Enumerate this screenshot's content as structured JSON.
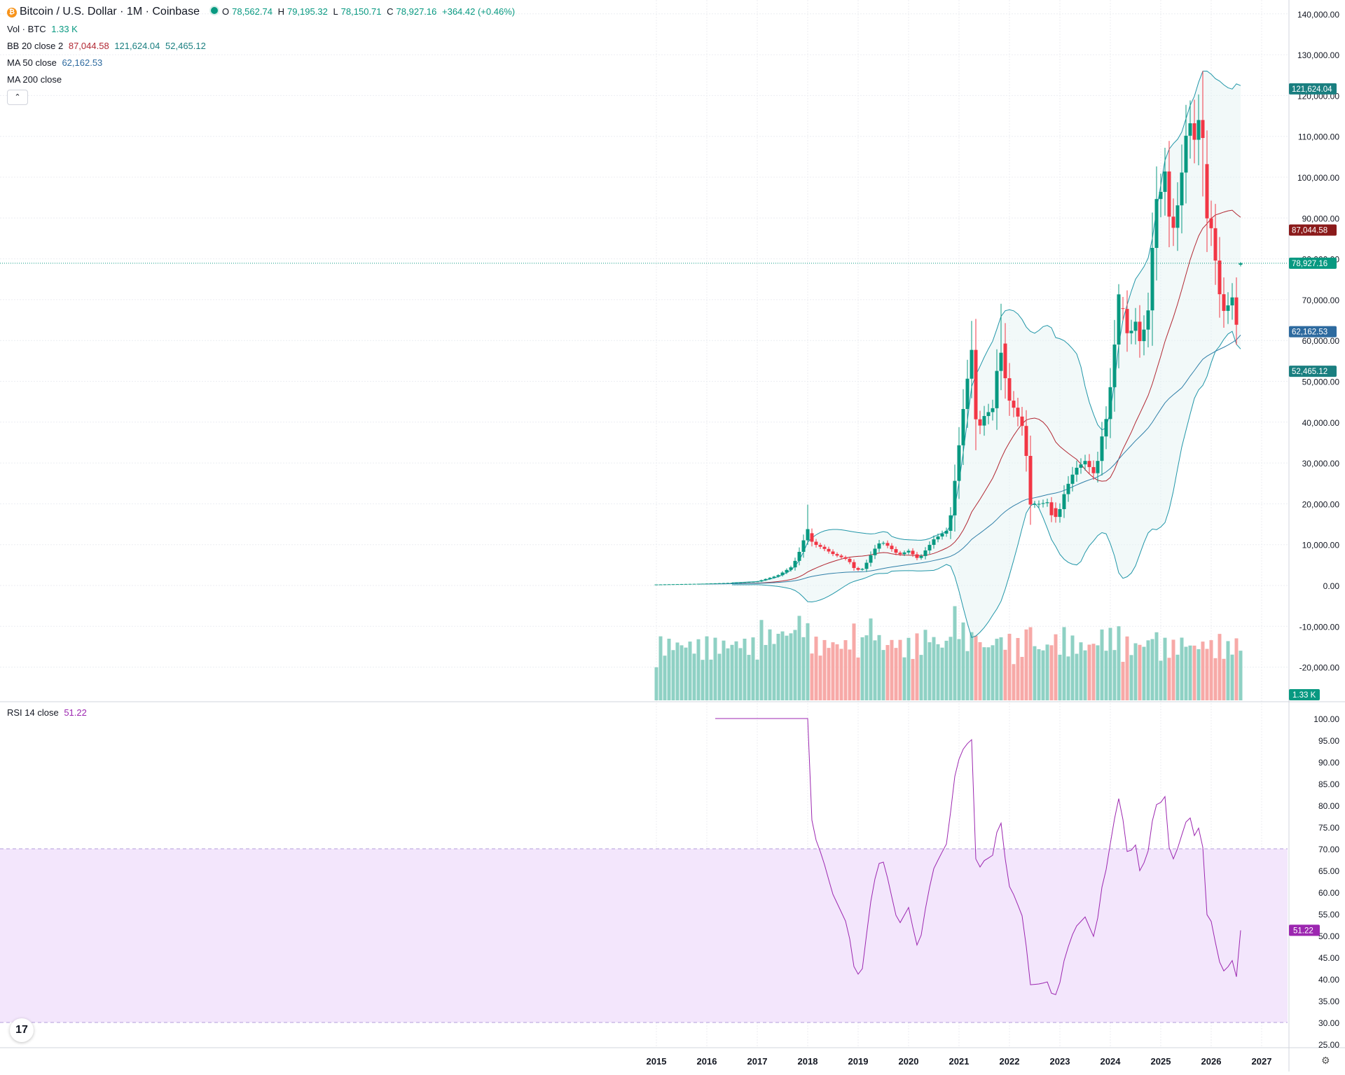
{
  "header": {
    "symbol_title": "Bitcoin / U.S. Dollar · 1M · Coinbase",
    "o_label": "O",
    "o_value": "78,562.74",
    "h_label": "H",
    "h_value": "79,195.32",
    "l_label": "L",
    "l_value": "78,150.71",
    "c_label": "C",
    "c_value": "78,927.16",
    "change": "+364.42 (+0.46%)"
  },
  "indicators": {
    "vol_label": "Vol · BTC",
    "vol_value": "1.33 K",
    "bb_label": "BB 20 close 2",
    "bb_mid": "87,044.58",
    "bb_upper": "121,624.04",
    "bb_lower": "52,465.12",
    "ma50_label": "MA 50 close",
    "ma50_value": "62,162.53",
    "ma200_label": "MA 200 close",
    "rsi_label": "RSI 14 close",
    "rsi_value": "51.22"
  },
  "buttons": {
    "collapse_icon": "chevron-up-icon",
    "collapse_glyph": "⌃",
    "settings_icon": "gear-icon",
    "settings_glyph": "⚙",
    "logo_text": "17"
  },
  "colors": {
    "up": "#089981",
    "down": "#f23645",
    "bb_mid": "#b22833",
    "bb_band": "#2196a8",
    "ma50": "#2962ff",
    "rsi": "#7e57c2",
    "rsi_band": "#f3e6fc"
  },
  "price_badges": [
    {
      "label": "121,624.04",
      "value": 121624.04,
      "color": "#1a7f80"
    },
    {
      "label": "87,044.58",
      "value": 87044.58,
      "color": "#8b1a1a"
    },
    {
      "label": "78,927.16",
      "value": 78927.16,
      "color": "#089981"
    },
    {
      "label": "62,162.53",
      "value": 62162.53,
      "color": "#2d6a9f"
    },
    {
      "label": "52,465.12",
      "value": 52465.12,
      "color": "#1a7f80"
    }
  ],
  "volume_badge": {
    "label": "1.33 K"
  },
  "rsi_badge": {
    "label": "51.22",
    "value": 51.22,
    "color": "#9c27b0"
  },
  "chart_data": [
    {
      "type": "candlestick",
      "title": "Bitcoin / U.S. Dollar · 1M · Coinbase",
      "y_axis": {
        "ticks": [
          -20000,
          -10000,
          0,
          10000,
          20000,
          30000,
          40000,
          50000,
          60000,
          70000,
          80000,
          90000,
          100000,
          110000,
          120000,
          130000,
          140000
        ],
        "tick_labels": [
          "-20,000.00",
          "-10,000.00",
          "0.00",
          "10,000.00",
          "20,000.00",
          "30,000.00",
          "40,000.00",
          "50,000.00",
          "60,000.00",
          "70,000.00",
          "80,000.00",
          "90,000.00",
          "100,000.00",
          "110,000.00",
          "120,000.00",
          "130,000.00",
          "140,000.00"
        ]
      },
      "x_axis": {
        "ticks": [
          2015,
          2016,
          2017,
          2018,
          2019,
          2020,
          2021,
          2022,
          2023,
          2024,
          2025,
          2026,
          2027
        ],
        "tick_labels": [
          "2015",
          "2016",
          "2017",
          "2018",
          "2019",
          "2020",
          "2021",
          "2022",
          "2023",
          "2024",
          "2025",
          "2026",
          "2027"
        ]
      },
      "yearly_closes": [
        {
          "year": 2015,
          "close": 430
        },
        {
          "year": 2016,
          "close": 960
        },
        {
          "year": 2017,
          "close": 13800
        },
        {
          "year": 2018,
          "close": 3700
        },
        {
          "year": 2019,
          "close": 7200
        },
        {
          "year": 2020,
          "close": 29000
        },
        {
          "year": 2021,
          "close": 46300
        },
        {
          "year": 2022,
          "close": 16500
        },
        {
          "year": 2023,
          "close": 42300
        },
        {
          "year": 2024,
          "close": 93400
        },
        {
          "year": 2025,
          "close": 87500
        }
      ],
      "anchor_months": [
        {
          "t": 2017.96,
          "high": 19800,
          "close": 13800
        },
        {
          "t": 2021.25,
          "high": 64800,
          "close": 57700
        },
        {
          "t": 2021.87,
          "high": 69000,
          "close": 57000
        },
        {
          "t": 2022.87,
          "low": 15500,
          "close": 17200
        },
        {
          "t": 2024.2,
          "high": 73800,
          "close": 71300
        },
        {
          "t": 2025.8,
          "high": 126000,
          "close": 109600
        },
        {
          "t": 2026.6,
          "open": 78562.74,
          "high": 79195.32,
          "low": 78150.71,
          "close": 78927.16
        }
      ],
      "bollinger_last": {
        "upper": 121624.04,
        "mid": 87044.58,
        "lower": 52465.12
      },
      "ma50_last": 62162.53,
      "volume_last": "1.33 K"
    },
    {
      "type": "line",
      "title": "RSI 14 close",
      "y_axis": {
        "ticks": [
          25,
          30,
          35,
          40,
          45,
          50,
          55,
          60,
          65,
          70,
          75,
          80,
          85,
          90,
          95,
          100
        ],
        "tick_labels": [
          "25.00",
          "30.00",
          "35.00",
          "40.00",
          "45.00",
          "50.00",
          "55.00",
          "60.00",
          "65.00",
          "70.00",
          "75.00",
          "80.00",
          "85.00",
          "90.00",
          "95.00",
          "100.00"
        ]
      },
      "band": [
        30,
        70
      ],
      "last": 51.22
    }
  ]
}
